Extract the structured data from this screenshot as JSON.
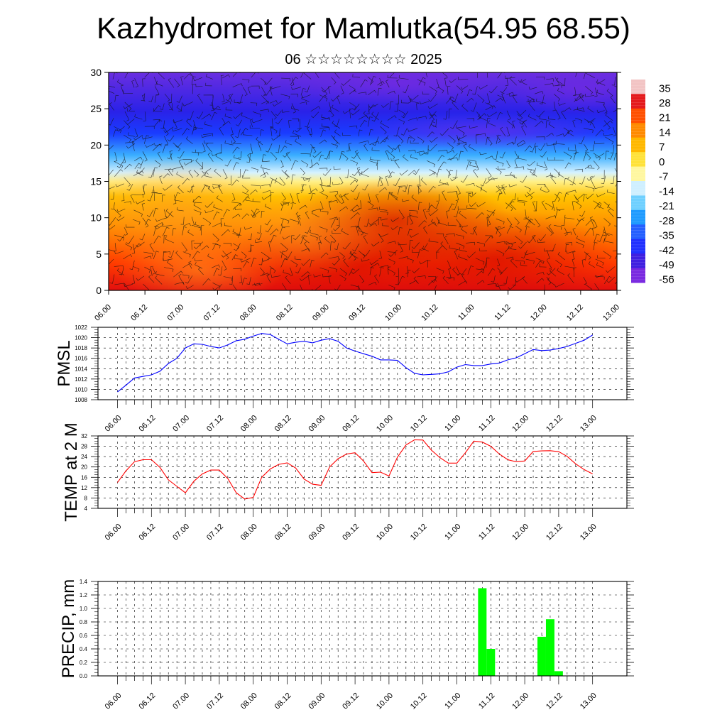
{
  "title": "Kazhydromet for Mamlutka(54.95 68.55)",
  "subtitle": "06 ☆☆☆☆☆☆☆☆ 2025",
  "time_labels": [
    "06.00",
    "06.12",
    "07.00",
    "07.12",
    "08.00",
    "08.12",
    "09.00",
    "09.12",
    "10.00",
    "10.12",
    "11.00",
    "11.12",
    "12.00",
    "12.12",
    "13.00"
  ],
  "chart_data": [
    {
      "type": "heatmap",
      "name_of_panel": "cross-section",
      "x": [
        "06.00",
        "06.12",
        "07.00",
        "07.12",
        "08.00",
        "08.12",
        "09.00",
        "09.12",
        "10.00",
        "10.12",
        "11.00",
        "11.12",
        "12.00",
        "12.12",
        "13.00"
      ],
      "ylim": [
        0,
        30
      ],
      "yticks": [
        0,
        5,
        10,
        15,
        20,
        25,
        30
      ],
      "colorbar_labels": [
        "35",
        "28",
        "21",
        "14",
        "7",
        "0",
        "-7",
        "-14",
        "-21",
        "-28",
        "-35",
        "-42",
        "-49",
        "-56"
      ],
      "colorbar_colors": [
        "#f2c4c4",
        "#e41a1c",
        "#ff5000",
        "#ff8a00",
        "#ffb800",
        "#ffe23a",
        "#fff7a0",
        "#cfefff",
        "#6fd0ff",
        "#1f9bff",
        "#2560ff",
        "#2030ff",
        "#4020e0",
        "#7a2ae0"
      ],
      "field_description": "temperature-like field: warm red/orange near the surface, yellow around 15, blue above 20, purple aloft, with wind barbs"
    },
    {
      "type": "line",
      "ylabel": "PMSL",
      "ylim": [
        1008,
        1022
      ],
      "yticks": [
        1008,
        1010,
        1012,
        1014,
        1016,
        1018,
        1020,
        1022
      ],
      "color": "#0000ff",
      "values": [
        1009.5,
        1010.8,
        1012.2,
        1012.5,
        1012.8,
        1013.5,
        1015,
        1016,
        1018,
        1018.8,
        1018.7,
        1018.3,
        1018,
        1018.6,
        1019.4,
        1019.7,
        1020.3,
        1020.8,
        1020.6,
        1019.7,
        1018.8,
        1019.1,
        1019.3,
        1019,
        1019.5,
        1019.8,
        1019.3,
        1018,
        1017.4,
        1016.9,
        1016.4,
        1015.7,
        1015.7,
        1015.6,
        1014.2,
        1013.1,
        1012.8,
        1012.9,
        1013,
        1013.4,
        1014.3,
        1014.8,
        1014.6,
        1014.6,
        1014.9,
        1015.1,
        1015.7,
        1016.1,
        1016.9,
        1017.7,
        1017.5,
        1017.6,
        1017.9,
        1018.3,
        1018.9,
        1019.5,
        1020.5
      ]
    },
    {
      "type": "line",
      "ylabel": "TEMP at 2 M",
      "ylim": [
        4,
        32
      ],
      "yticks": [
        4,
        8,
        12,
        16,
        20,
        24,
        28,
        32
      ],
      "color": "#ff0000",
      "values": [
        14,
        18.5,
        22,
        22.8,
        22.8,
        19.8,
        15,
        12.5,
        10,
        14.5,
        17.3,
        18.8,
        18.8,
        15.5,
        10,
        7.6,
        8.2,
        16,
        19.2,
        21,
        21.6,
        19.6,
        15.3,
        13.3,
        12.9,
        20,
        23.2,
        25,
        25.5,
        22.3,
        17.8,
        18,
        16.5,
        23.8,
        28.5,
        30.5,
        30.4,
        26.5,
        23.6,
        21.5,
        21.5,
        25.5,
        30,
        29.6,
        28,
        25,
        22.8,
        22,
        22.3,
        26,
        26.2,
        26.3,
        25.9,
        24.1,
        21.2,
        19,
        17.3
      ]
    },
    {
      "type": "bar",
      "ylabel": "PRECIP, mm",
      "ylim": [
        0,
        1.4
      ],
      "yticks": [
        "0.0",
        "0.2",
        "0.4",
        "0.6",
        "0.8",
        "1.0",
        "1.2",
        "1.4"
      ],
      "color": "#00ff00",
      "bars": [
        {
          "t": 43,
          "value": 1.3
        },
        {
          "t": 44,
          "value": 0.4
        },
        {
          "t": 50,
          "value": 0.58
        },
        {
          "t": 51,
          "value": 0.84
        },
        {
          "t": 52,
          "value": 0.07
        }
      ],
      "time_steps_per_label": 4
    }
  ]
}
